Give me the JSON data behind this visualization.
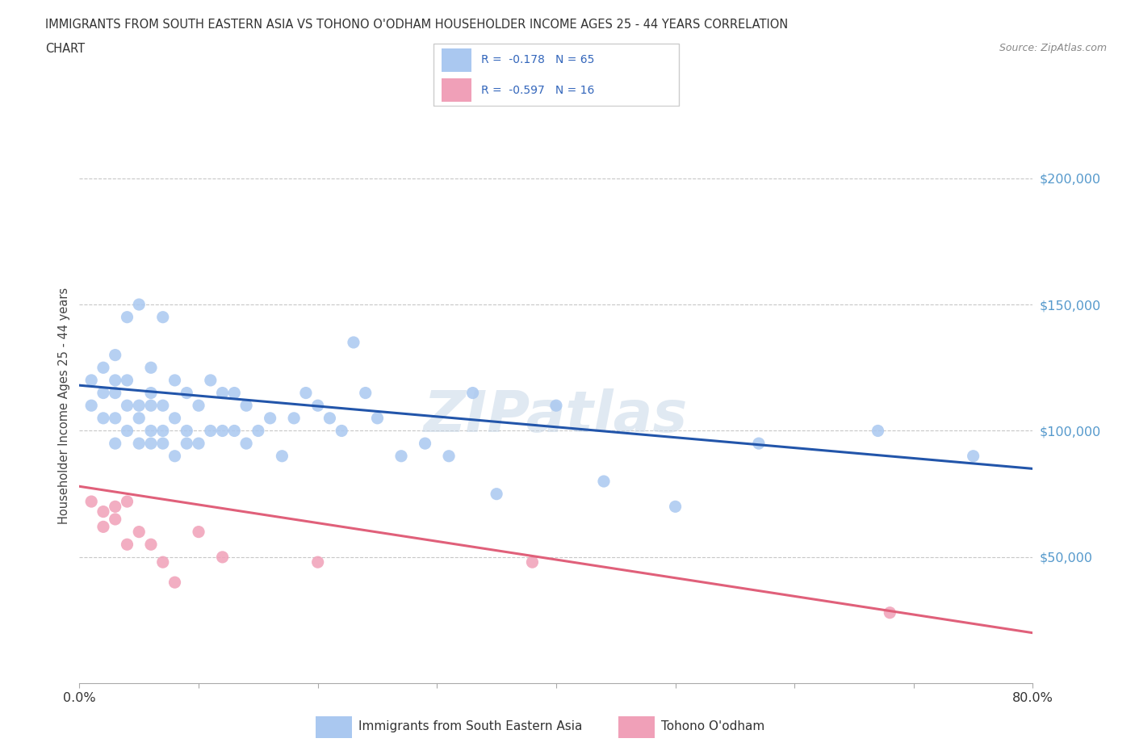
{
  "title_line1": "IMMIGRANTS FROM SOUTH EASTERN ASIA VS TOHONO O'ODHAM HOUSEHOLDER INCOME AGES 25 - 44 YEARS CORRELATION",
  "title_line2": "CHART",
  "source": "Source: ZipAtlas.com",
  "ylabel": "Householder Income Ages 25 - 44 years",
  "xlim": [
    0.0,
    0.8
  ],
  "ylim": [
    0,
    220000
  ],
  "background_color": "#ffffff",
  "grid_color": "#c8c8c8",
  "watermark": "ZIPatlas",
  "series1": {
    "name": "Immigrants from South Eastern Asia",
    "R": -0.178,
    "N": 65,
    "color": "#aac8f0",
    "line_color": "#2255aa",
    "scatter_x": [
      0.01,
      0.01,
      0.02,
      0.02,
      0.02,
      0.03,
      0.03,
      0.03,
      0.03,
      0.03,
      0.04,
      0.04,
      0.04,
      0.04,
      0.05,
      0.05,
      0.05,
      0.05,
      0.06,
      0.06,
      0.06,
      0.06,
      0.06,
      0.07,
      0.07,
      0.07,
      0.07,
      0.08,
      0.08,
      0.08,
      0.09,
      0.09,
      0.09,
      0.1,
      0.1,
      0.11,
      0.11,
      0.12,
      0.12,
      0.13,
      0.13,
      0.14,
      0.14,
      0.15,
      0.16,
      0.17,
      0.18,
      0.19,
      0.2,
      0.21,
      0.22,
      0.23,
      0.24,
      0.25,
      0.27,
      0.29,
      0.31,
      0.33,
      0.35,
      0.4,
      0.44,
      0.5,
      0.57,
      0.67,
      0.75
    ],
    "scatter_y": [
      110000,
      120000,
      105000,
      115000,
      125000,
      95000,
      105000,
      115000,
      120000,
      130000,
      100000,
      110000,
      120000,
      145000,
      95000,
      105000,
      110000,
      150000,
      95000,
      100000,
      110000,
      115000,
      125000,
      95000,
      100000,
      110000,
      145000,
      90000,
      105000,
      120000,
      95000,
      100000,
      115000,
      95000,
      110000,
      100000,
      120000,
      100000,
      115000,
      100000,
      115000,
      95000,
      110000,
      100000,
      105000,
      90000,
      105000,
      115000,
      110000,
      105000,
      100000,
      135000,
      115000,
      105000,
      90000,
      95000,
      90000,
      115000,
      75000,
      110000,
      80000,
      70000,
      95000,
      100000,
      90000
    ],
    "trend_x": [
      0.0,
      0.8
    ],
    "trend_y": [
      118000,
      85000
    ]
  },
  "series2": {
    "name": "Tohono O'odham",
    "R": -0.597,
    "N": 16,
    "color": "#f0a0b8",
    "line_color": "#e0607a",
    "scatter_x": [
      0.01,
      0.02,
      0.02,
      0.03,
      0.03,
      0.04,
      0.04,
      0.05,
      0.06,
      0.07,
      0.08,
      0.1,
      0.12,
      0.2,
      0.38,
      0.68
    ],
    "scatter_y": [
      72000,
      62000,
      68000,
      65000,
      70000,
      55000,
      72000,
      60000,
      55000,
      48000,
      40000,
      60000,
      50000,
      48000,
      48000,
      28000
    ],
    "trend_x": [
      0.0,
      0.8
    ],
    "trend_y": [
      78000,
      20000
    ]
  }
}
